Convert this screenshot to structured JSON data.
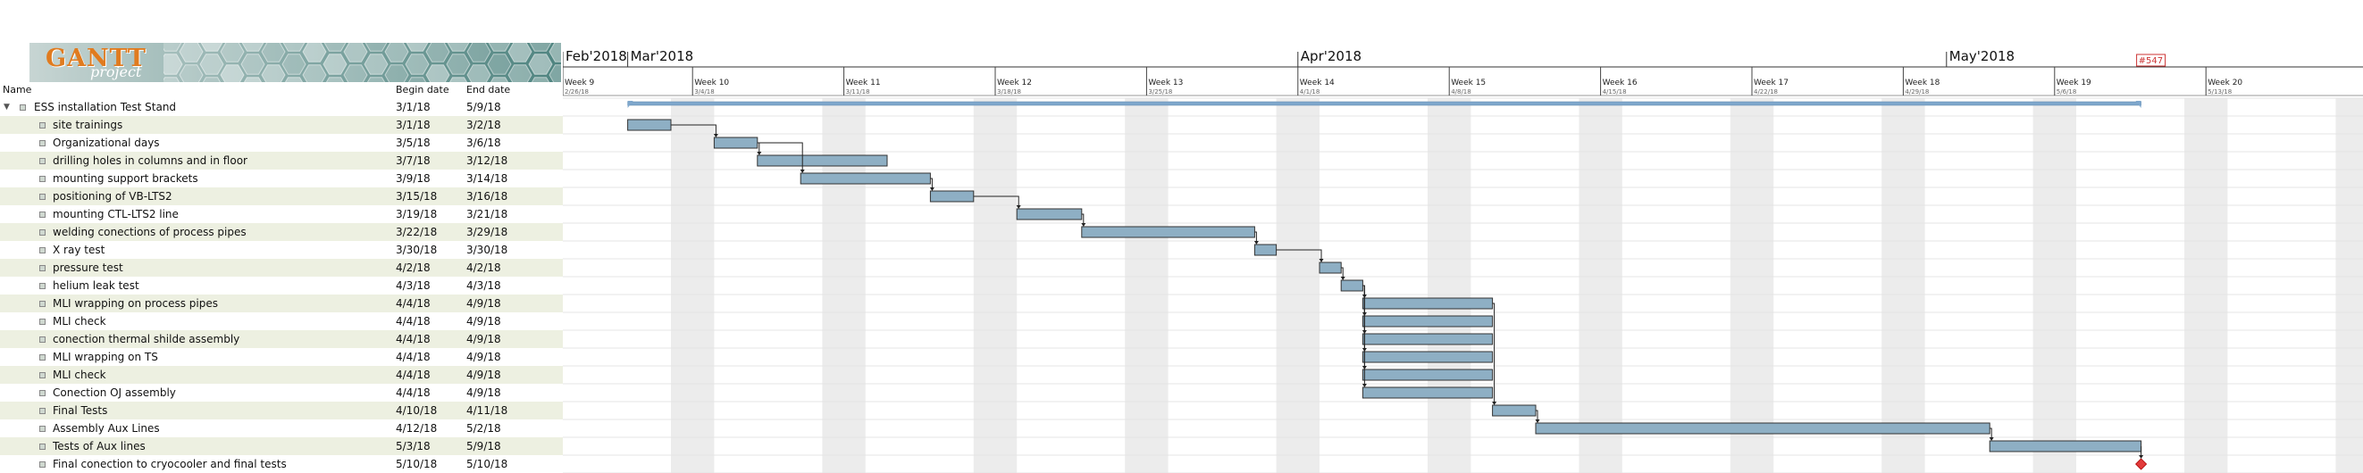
{
  "app": {
    "logo_text": "GANTT",
    "logo_subtext": "project"
  },
  "table": {
    "columns": {
      "name": "Name",
      "begin": "Begin date",
      "end": "End date"
    },
    "rows": [
      {
        "name": "ESS installation Test Stand",
        "begin": "3/1/18",
        "end": "5/9/18",
        "summary": true
      },
      {
        "name": "site trainings",
        "begin": "3/1/18",
        "end": "3/2/18"
      },
      {
        "name": "Organizational days",
        "begin": "3/5/18",
        "end": "3/6/18"
      },
      {
        "name": "drilling holes in columns and in floor",
        "begin": "3/7/18",
        "end": "3/12/18"
      },
      {
        "name": "mounting support brackets",
        "begin": "3/9/18",
        "end": "3/14/18"
      },
      {
        "name": "positioning of VB-LTS2",
        "begin": "3/15/18",
        "end": "3/16/18"
      },
      {
        "name": "mounting CTL-LTS2 line",
        "begin": "3/19/18",
        "end": "3/21/18"
      },
      {
        "name": "welding conections of process pipes",
        "begin": "3/22/18",
        "end": "3/29/18"
      },
      {
        "name": "X ray test",
        "begin": "3/30/18",
        "end": "3/30/18"
      },
      {
        "name": "pressure test",
        "begin": "4/2/18",
        "end": "4/2/18"
      },
      {
        "name": "helium leak test",
        "begin": "4/3/18",
        "end": "4/3/18"
      },
      {
        "name": "MLI wrapping on process pipes",
        "begin": "4/4/18",
        "end": "4/9/18"
      },
      {
        "name": "MLI check",
        "begin": "4/4/18",
        "end": "4/9/18"
      },
      {
        "name": "conection thermal shilde assembly",
        "begin": "4/4/18",
        "end": "4/9/18"
      },
      {
        "name": "MLI wrapping on TS",
        "begin": "4/4/18",
        "end": "4/9/18"
      },
      {
        "name": "MLI check",
        "begin": "4/4/18",
        "end": "4/9/18"
      },
      {
        "name": "Conection OJ assembly",
        "begin": "4/4/18",
        "end": "4/9/18"
      },
      {
        "name": "Final Tests",
        "begin": "4/10/18",
        "end": "4/11/18"
      },
      {
        "name": "Assembly Aux Lines",
        "begin": "4/12/18",
        "end": "5/2/18"
      },
      {
        "name": "Tests of Aux lines",
        "begin": "5/3/18",
        "end": "5/9/18"
      },
      {
        "name": "Final conection to cryocooler and final tests",
        "begin": "5/10/18",
        "end": "5/10/18",
        "milestone": true
      }
    ]
  },
  "timeline": {
    "months": [
      {
        "label": "Feb'2018",
        "date": "2018-02-26"
      },
      {
        "label": "Mar'2018",
        "date": "2018-03-01"
      },
      {
        "label": "Apr'2018",
        "date": "2018-04-01"
      },
      {
        "label": "May'2018",
        "date": "2018-05-01"
      }
    ],
    "weeks": [
      {
        "label": "Week 9",
        "date_label": "2/26/18",
        "date": "2018-02-26"
      },
      {
        "label": "Week 10",
        "date_label": "3/4/18",
        "date": "2018-03-04"
      },
      {
        "label": "Week 11",
        "date_label": "3/11/18",
        "date": "2018-03-11"
      },
      {
        "label": "Week 12",
        "date_label": "3/18/18",
        "date": "2018-03-18"
      },
      {
        "label": "Week 13",
        "date_label": "3/25/18",
        "date": "2018-03-25"
      },
      {
        "label": "Week 14",
        "date_label": "4/1/18",
        "date": "2018-04-01"
      },
      {
        "label": "Week 15",
        "date_label": "4/8/18",
        "date": "2018-04-08"
      },
      {
        "label": "Week 16",
        "date_label": "4/15/18",
        "date": "2018-04-15"
      },
      {
        "label": "Week 17",
        "date_label": "4/22/18",
        "date": "2018-04-22"
      },
      {
        "label": "Week 18",
        "date_label": "4/29/18",
        "date": "2018-04-29"
      },
      {
        "label": "Week 19",
        "date_label": "5/6/18",
        "date": "2018-05-06"
      },
      {
        "label": "Week 20",
        "date_label": "5/13/18",
        "date": "2018-05-13"
      }
    ],
    "today_label": "#547",
    "today_date": "2018-05-10"
  },
  "tasks": [
    {
      "start": "2018-03-01",
      "end": "2018-05-09",
      "summary": true
    },
    {
      "start": "2018-03-01",
      "end": "2018-03-02"
    },
    {
      "start": "2018-03-05",
      "end": "2018-03-06"
    },
    {
      "start": "2018-03-07",
      "end": "2018-03-12"
    },
    {
      "start": "2018-03-09",
      "end": "2018-03-14"
    },
    {
      "start": "2018-03-15",
      "end": "2018-03-16"
    },
    {
      "start": "2018-03-19",
      "end": "2018-03-21"
    },
    {
      "start": "2018-03-22",
      "end": "2018-03-29"
    },
    {
      "start": "2018-03-30",
      "end": "2018-03-30"
    },
    {
      "start": "2018-04-02",
      "end": "2018-04-02"
    },
    {
      "start": "2018-04-03",
      "end": "2018-04-03"
    },
    {
      "start": "2018-04-04",
      "end": "2018-04-09"
    },
    {
      "start": "2018-04-04",
      "end": "2018-04-09"
    },
    {
      "start": "2018-04-04",
      "end": "2018-04-09"
    },
    {
      "start": "2018-04-04",
      "end": "2018-04-09"
    },
    {
      "start": "2018-04-04",
      "end": "2018-04-09"
    },
    {
      "start": "2018-04-04",
      "end": "2018-04-09"
    },
    {
      "start": "2018-04-10",
      "end": "2018-04-11"
    },
    {
      "start": "2018-04-12",
      "end": "2018-05-02"
    },
    {
      "start": "2018-05-03",
      "end": "2018-05-09"
    },
    {
      "start": "2018-05-10",
      "end": "2018-05-10",
      "milestone": true
    }
  ],
  "dependencies": [
    [
      1,
      2
    ],
    [
      2,
      3
    ],
    [
      2,
      4
    ],
    [
      4,
      5
    ],
    [
      5,
      6
    ],
    [
      6,
      7
    ],
    [
      7,
      8
    ],
    [
      8,
      9
    ],
    [
      9,
      10
    ],
    [
      10,
      11
    ],
    [
      10,
      12
    ],
    [
      10,
      13
    ],
    [
      10,
      14
    ],
    [
      10,
      15
    ],
    [
      10,
      16
    ],
    [
      11,
      17
    ],
    [
      17,
      18
    ],
    [
      18,
      19
    ],
    [
      19,
      20
    ]
  ],
  "colors": {
    "bar": "#8eafc4",
    "bar_border": "#333333",
    "summary": "#7ea7cc",
    "weekend": "#ececec",
    "row_alt": "#edf0e1",
    "milestone": "#e23b3b",
    "today": "#cc3333"
  }
}
